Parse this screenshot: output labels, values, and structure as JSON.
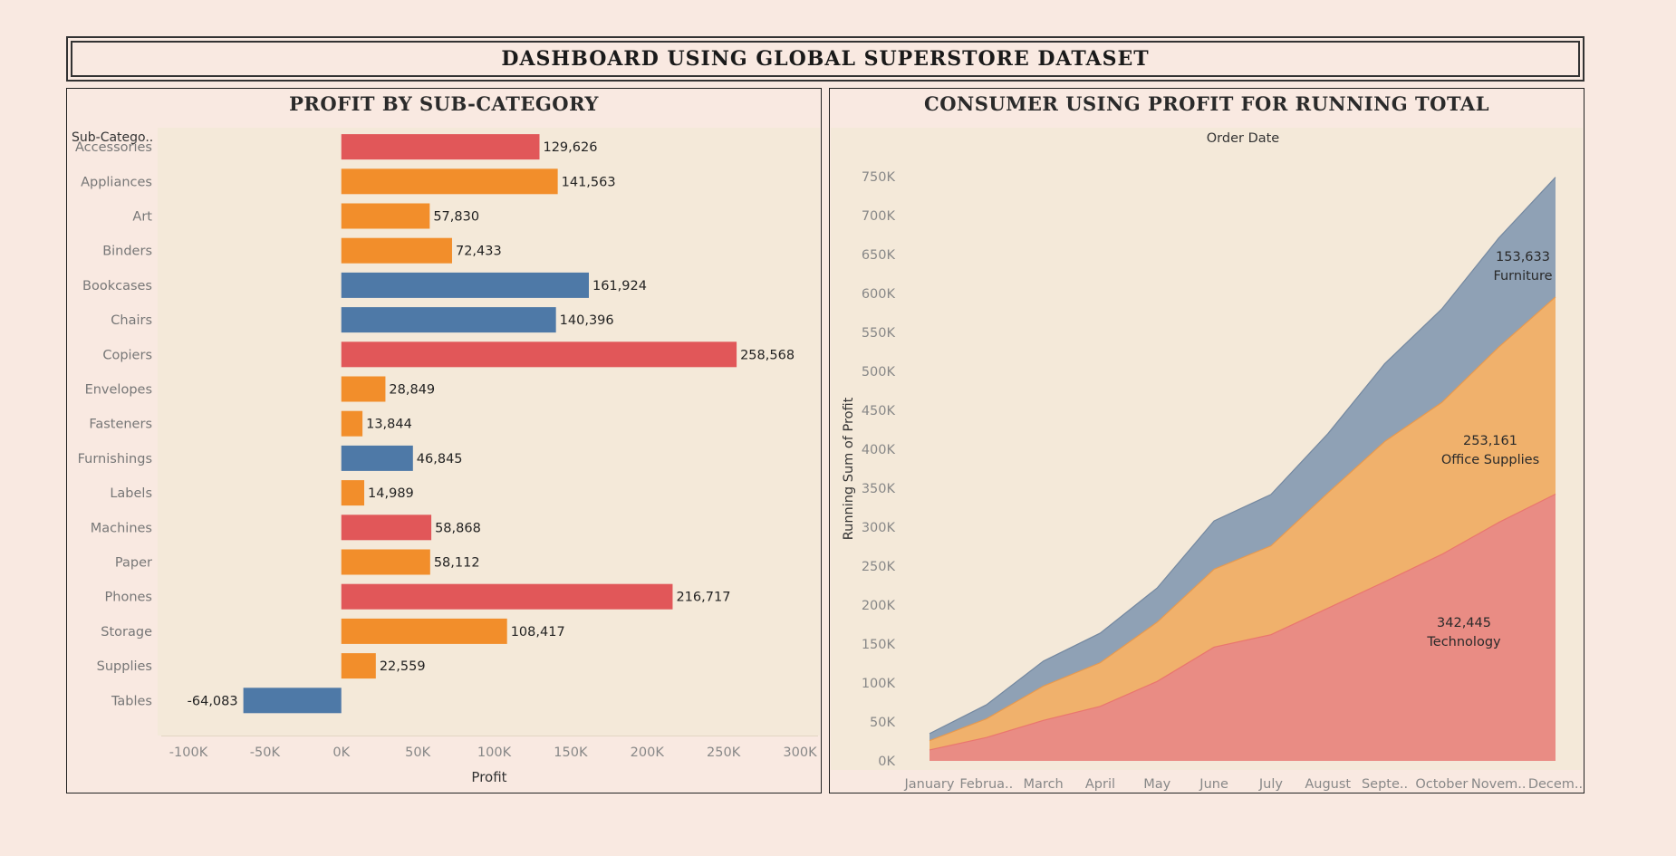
{
  "dashboard_title": "DASHBOARD USING GLOBAL SUPERSTORE DATASET",
  "colors": {
    "page_bg": "#f9e9e1",
    "plot_bg": "#f4e9d9",
    "red": "#e15759",
    "orange": "#f28e2b",
    "blue": "#4e79a7",
    "area_technology": "#e98c84",
    "area_office": "#f0b16c",
    "area_furniture": "#8fa1b5"
  },
  "chart_data": [
    {
      "type": "bar",
      "title": "PROFIT BY SUB-CATEGORY",
      "row_header": "Sub-Catego..",
      "xlabel": "Profit",
      "xlim": [
        -100000,
        300000
      ],
      "xticks": [
        -100000,
        -50000,
        0,
        50000,
        100000,
        150000,
        200000,
        250000,
        300000
      ],
      "xtick_labels": [
        "-100K",
        "-50K",
        "0K",
        "50K",
        "100K",
        "150K",
        "200K",
        "250K",
        "300K"
      ],
      "categories": [
        "Accessories",
        "Appliances",
        "Art",
        "Binders",
        "Bookcases",
        "Chairs",
        "Copiers",
        "Envelopes",
        "Fasteners",
        "Furnishings",
        "Labels",
        "Machines",
        "Paper",
        "Phones",
        "Storage",
        "Supplies",
        "Tables"
      ],
      "values": [
        129626,
        141563,
        57830,
        72433,
        161924,
        140396,
        258568,
        28849,
        13844,
        46845,
        14989,
        58868,
        58112,
        216717,
        108417,
        22559,
        -64083
      ],
      "value_labels": [
        "129,626",
        "141,563",
        "57,830",
        "72,433",
        "161,924",
        "140,396",
        "258,568",
        "28,849",
        "13,844",
        "46,845",
        "14,989",
        "58,868",
        "58,112",
        "216,717",
        "108,417",
        "22,559",
        "-64,083"
      ],
      "bar_colors": [
        "red",
        "orange",
        "orange",
        "orange",
        "blue",
        "blue",
        "red",
        "orange",
        "orange",
        "blue",
        "orange",
        "red",
        "orange",
        "red",
        "orange",
        "orange",
        "blue"
      ]
    },
    {
      "type": "area",
      "title": "CONSUMER USING PROFIT FOR RUNNING TOTAL",
      "top_label": "Order Date",
      "ylabel": "Running Sum of Profit",
      "ylim": [
        0,
        750000
      ],
      "yticks": [
        0,
        50000,
        100000,
        150000,
        200000,
        250000,
        300000,
        350000,
        400000,
        450000,
        500000,
        550000,
        600000,
        650000,
        700000,
        750000
      ],
      "ytick_labels": [
        "0K",
        "50K",
        "100K",
        "150K",
        "200K",
        "250K",
        "300K",
        "350K",
        "400K",
        "450K",
        "500K",
        "550K",
        "600K",
        "650K",
        "700K",
        "750K"
      ],
      "x": [
        "January",
        "Februa..",
        "March",
        "April",
        "May",
        "June",
        "July",
        "August",
        "Septe..",
        "October",
        "Novem..",
        "Decem.."
      ],
      "stacked": true,
      "series": [
        {
          "name": "Technology",
          "color": "area_technology",
          "values": [
            14000,
            30000,
            52000,
            70000,
            102000,
            146000,
            162000,
            196000,
            230000,
            265000,
            306000,
            342445
          ],
          "end_label": "342,445"
        },
        {
          "name": "Office Supplies",
          "color": "area_office",
          "values": [
            12000,
            24000,
            44000,
            56000,
            76000,
            100000,
            114000,
            148000,
            180000,
            195000,
            225000,
            253161
          ],
          "end_label": "253,161"
        },
        {
          "name": "Furniture",
          "color": "area_furniture",
          "values": [
            9000,
            18000,
            32000,
            38000,
            44000,
            62000,
            66000,
            76000,
            100000,
            120000,
            140000,
            153633
          ],
          "end_label": "153,633"
        }
      ]
    }
  ]
}
